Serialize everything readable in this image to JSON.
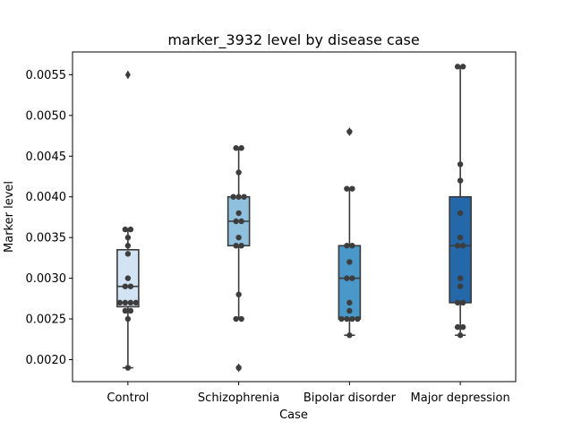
{
  "chart_data": {
    "type": "box",
    "title": "marker_3932 level by disease case",
    "xlabel": "Case",
    "ylabel": "Marker level",
    "ylim": [
      0.00173,
      0.00578
    ],
    "yticks": [
      0.002,
      0.0025,
      0.003,
      0.0035,
      0.004,
      0.0045,
      0.005,
      0.0055
    ],
    "ytick_labels": [
      "0.0020",
      "0.0025",
      "0.0030",
      "0.0035",
      "0.0040",
      "0.0045",
      "0.0050",
      "0.0055"
    ],
    "categories": [
      "Control",
      "Schizophrenia",
      "Bipolar disorder",
      "Major depression"
    ],
    "colors": [
      "#d2e3f3",
      "#8fc1de",
      "#4a98c9",
      "#2468aa"
    ],
    "boxes": [
      {
        "category": "Control",
        "q1": 0.00265,
        "median": 0.0029,
        "q3": 0.00335,
        "whisker_low": 0.0019,
        "whisker_high": 0.0036,
        "outliers": [
          0.0055
        ],
        "points": [
          0.0019,
          0.0025,
          0.0026,
          0.0026,
          0.0027,
          0.0027,
          0.0027,
          0.0027,
          0.0029,
          0.0029,
          0.003,
          0.0033,
          0.0034,
          0.0035,
          0.0036,
          0.0036
        ]
      },
      {
        "category": "Schizophrenia",
        "q1": 0.0034,
        "median": 0.0037,
        "q3": 0.004,
        "whisker_low": 0.0025,
        "whisker_high": 0.0046,
        "outliers": [
          0.0019
        ],
        "points": [
          0.0019,
          0.0025,
          0.0025,
          0.0028,
          0.0034,
          0.0034,
          0.0035,
          0.0037,
          0.0037,
          0.0038,
          0.004,
          0.004,
          0.004,
          0.0043,
          0.0046,
          0.0046
        ]
      },
      {
        "category": "Bipolar disorder",
        "q1": 0.0025,
        "median": 0.003,
        "q3": 0.0034,
        "whisker_low": 0.0023,
        "whisker_high": 0.0041,
        "outliers": [
          0.0048
        ],
        "points": [
          0.0023,
          0.0025,
          0.0025,
          0.0025,
          0.0025,
          0.0026,
          0.0027,
          0.003,
          0.003,
          0.0032,
          0.0034,
          0.0034,
          0.0041,
          0.0041,
          0.0048
        ]
      },
      {
        "category": "Major depression",
        "q1": 0.0027,
        "median": 0.0034,
        "q3": 0.004,
        "whisker_low": 0.0023,
        "whisker_high": 0.0056,
        "outliers": [],
        "points": [
          0.0023,
          0.0024,
          0.0024,
          0.0027,
          0.0027,
          0.0029,
          0.003,
          0.0034,
          0.0034,
          0.0035,
          0.0038,
          0.0042,
          0.0044,
          0.0056,
          0.0056
        ]
      }
    ]
  }
}
